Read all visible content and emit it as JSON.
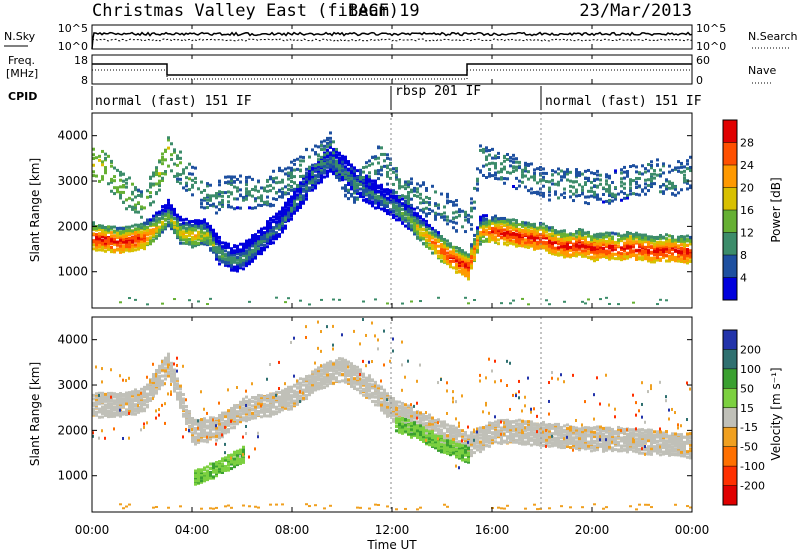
{
  "header": {
    "title": "Christmas Valley East (fitACF)",
    "beam": "Beam 19",
    "date": "23/Mar/2013"
  },
  "noise_panel": {
    "left_label": "N.Sky",
    "left_ticks": [
      "10^5",
      "10^0"
    ],
    "right_ticks": [
      "10^5",
      "10^0"
    ],
    "right_label": "N.Search"
  },
  "freq_panel": {
    "left_label_line1": "Freq.",
    "left_label_line2": "[MHz]",
    "left_ticks": [
      "18",
      "8"
    ],
    "right_ticks": [
      "60",
      "0"
    ],
    "right_label": "Nave"
  },
  "cpid_panel": {
    "label": "CPID",
    "segments": [
      "normal (fast) 151 IF",
      "rbsp 201 IF",
      "normal (fast) 151 IF"
    ]
  },
  "chart_data": [
    {
      "type": "heatmap",
      "name": "power",
      "ylabel": "Slant Range [km]",
      "ylim": [
        200,
        4500
      ],
      "yticks": [
        1000,
        2000,
        3000,
        4000
      ],
      "colorbar": {
        "label": "Power [dB]",
        "ticks": [
          "28",
          "24",
          "20",
          "16",
          "12",
          "8",
          "4"
        ],
        "colors": [
          "#e00000",
          "#ff5000",
          "#ff9900",
          "#d8c000",
          "#66b033",
          "#3c8c6a",
          "#1e50a0",
          "#0000dd"
        ]
      },
      "x_hours": [
        0,
        0.5,
        1,
        1.5,
        2,
        2.5,
        3,
        3.5,
        4,
        4.5,
        5,
        5.5,
        6,
        6.5,
        7,
        7.5,
        8,
        8.5,
        9,
        9.5,
        10,
        10.5,
        11,
        11.5,
        12,
        12.5,
        13,
        13.5,
        14,
        14.5,
        15,
        15.5,
        16,
        16.5,
        17,
        17.5,
        18,
        18.5,
        19,
        19.5,
        20,
        20.5,
        21,
        21.5,
        22,
        22.5,
        23,
        23.5,
        24
      ],
      "main_band_km": [
        1800,
        1750,
        1700,
        1750,
        1800,
        2000,
        2300,
        1900,
        1850,
        1900,
        1500,
        1300,
        1350,
        1600,
        1850,
        2100,
        2500,
        2900,
        3200,
        3500,
        3300,
        3000,
        2800,
        2650,
        2500,
        2300,
        2000,
        1750,
        1500,
        1300,
        1150,
        1950,
        1950,
        1900,
        1850,
        1800,
        1780,
        1650,
        1600,
        1650,
        1550,
        1580,
        1550,
        1600,
        1550,
        1500,
        1550,
        1500,
        1500
      ],
      "main_band_power_db": [
        28,
        28,
        28,
        28,
        26,
        20,
        14,
        18,
        20,
        16,
        12,
        10,
        10,
        10,
        8,
        8,
        8,
        8,
        8,
        8,
        8,
        8,
        8,
        8,
        10,
        12,
        18,
        22,
        26,
        28,
        28,
        20,
        26,
        28,
        28,
        28,
        28,
        28,
        28,
        28,
        28,
        28,
        28,
        28,
        28,
        28,
        28,
        28,
        28
      ],
      "upper_band_km": [
        3500,
        3300,
        3000,
        2700,
        2500,
        3000,
        3700,
        3300,
        3000,
        2700,
        2700,
        2800,
        2800,
        2750,
        2800,
        3000,
        3100,
        3400,
        3500,
        3800,
        3100,
        2900,
        3200,
        3500,
        3100,
        2800,
        2700,
        2600,
        2500,
        2300,
        2000,
        3500,
        3400,
        3300,
        3200,
        3100,
        3000,
        3000,
        3000,
        2950,
        2900,
        2900,
        2950,
        3000,
        3100,
        3200,
        3000,
        3150,
        3200
      ],
      "upper_band_power_db": [
        16,
        14,
        12,
        12,
        10,
        12,
        14,
        10,
        8,
        8,
        8,
        8,
        8,
        8,
        8,
        8,
        8,
        8,
        8,
        8,
        8,
        8,
        8,
        8,
        8,
        8,
        8,
        8,
        8,
        8,
        8,
        8,
        8,
        8,
        8,
        8,
        8,
        8,
        8,
        8,
        8,
        8,
        8,
        8,
        8,
        8,
        8,
        8,
        8
      ]
    },
    {
      "type": "heatmap",
      "name": "velocity",
      "ylabel": "Slant Range [km]",
      "ylim": [
        200,
        4500
      ],
      "yticks": [
        1000,
        2000,
        3000,
        4000
      ],
      "colorbar": {
        "label": "Velocity [m s⁻¹]",
        "ticks": [
          "200",
          "100",
          "50",
          "15",
          "-15",
          "-50",
          "-100",
          "-200"
        ],
        "colors": [
          "#2233aa",
          "#2f7070",
          "#3aa030",
          "#7cd040",
          "#c0c0b8",
          "#f0a020",
          "#ff7000",
          "#ff3000",
          "#e00000"
        ]
      },
      "x_hours": [
        0,
        1,
        2,
        3,
        4,
        5,
        6,
        7,
        8,
        9,
        10,
        11,
        12,
        13,
        14,
        15,
        16,
        17,
        18,
        19,
        20,
        21,
        22,
        23,
        24
      ],
      "ground_scatter_km": [
        2600,
        2600,
        2700,
        3500,
        2000,
        2100,
        2500,
        2600,
        2800,
        3200,
        3400,
        3000,
        2500,
        2200,
        2000,
        1700,
        2000,
        2000,
        1950,
        1900,
        1850,
        1850,
        1800,
        1750,
        1700
      ],
      "positive_velocity_patch_km": [
        null,
        null,
        null,
        null,
        950,
        1200,
        1500,
        null,
        null,
        null,
        null,
        null,
        2200,
        2000,
        1700,
        1500,
        null,
        null,
        null,
        null,
        null,
        null,
        null,
        null,
        null
      ],
      "flag_ground_scatter_gray": true
    }
  ],
  "time_axis": {
    "label": "Time UT",
    "ticks": [
      "00:00",
      "04:00",
      "08:00",
      "12:00",
      "16:00",
      "20:00",
      "00:00"
    ]
  }
}
